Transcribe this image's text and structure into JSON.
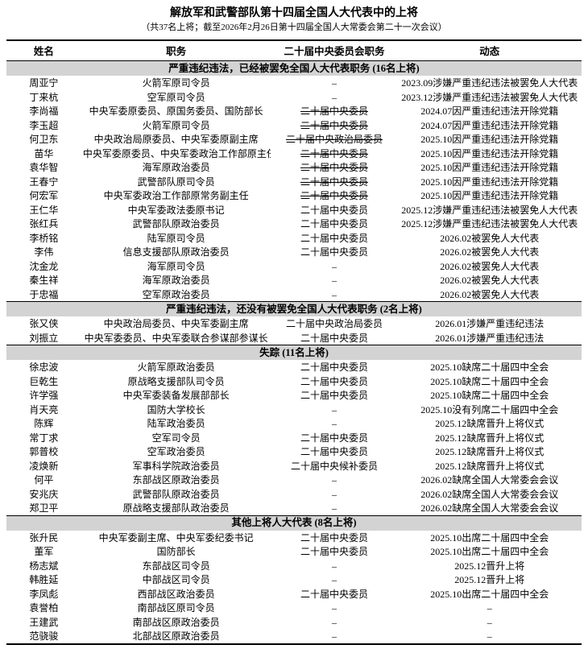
{
  "title": "解放军和武警部队第十四届全国人大代表中的上将",
  "subtitle": "（共37名上将；截至2026年2月26日第十四届全国人大常委会第二十一次会议）",
  "columns": {
    "name": "姓名",
    "position": "职务",
    "committee": "二十届中央委员会职务",
    "status": "动态"
  },
  "sections": [
    {
      "header": "严重违纪违法，已经被罢免全国人大代表职务 (16名上将)",
      "rows": [
        {
          "name": "周亚宁",
          "position": "火箭军原司令员",
          "committee": "–",
          "committee_struck": false,
          "status": "2023.09涉嫌严重违纪违法被罢免人大代表"
        },
        {
          "name": "丁来杭",
          "position": "空军原司令员",
          "committee": "–",
          "committee_struck": false,
          "status": "2023.12涉嫌严重违纪违法被罢免人大代表"
        },
        {
          "name": "李尚福",
          "position": "中央军委原委员、原国务委员、国防部长",
          "committee": "二十届中央委员",
          "committee_struck": true,
          "status": "2024.07因严重违纪违法开除党籍"
        },
        {
          "name": "李玉超",
          "position": "火箭军原司令员",
          "committee": "二十届中央委员",
          "committee_struck": true,
          "status": "2024.07因严重违纪违法开除党籍"
        },
        {
          "name": "何卫东",
          "position": "中央政治局原委员、中央军委原副主席",
          "committee": "二十届中央政治局委员",
          "committee_struck": true,
          "status": "2025.10因严重违纪违法开除党籍"
        },
        {
          "name": "苗华",
          "position": "中央军委原委员、中央军委政治工作部原主任",
          "committee": "二十届中央委员",
          "committee_struck": true,
          "status": "2025.10因严重违纪违法开除党籍"
        },
        {
          "name": "袁华智",
          "position": "海军原政治委员",
          "committee": "二十届中央委员",
          "committee_struck": true,
          "status": "2025.10因严重违纪违法开除党籍"
        },
        {
          "name": "王春宁",
          "position": "武警部队原司令员",
          "committee": "二十届中央委员",
          "committee_struck": true,
          "status": "2025.10因严重违纪违法开除党籍"
        },
        {
          "name": "何宏军",
          "position": "中央军委政治工作部原常务副主任",
          "committee": "二十届中央委员",
          "committee_struck": true,
          "status": "2025.10因严重违纪违法开除党籍"
        },
        {
          "name": "王仁华",
          "position": "中央军委政法委原书记",
          "committee": "二十届中央委员",
          "committee_struck": false,
          "status": "2025.12涉嫌严重违纪违法被罢免人大代表"
        },
        {
          "name": "张红兵",
          "position": "武警部队原政治委员",
          "committee": "二十届中央委员",
          "committee_struck": false,
          "status": "2025.12涉嫌严重违纪违法被罢免人大代表"
        },
        {
          "name": "李桥铭",
          "position": "陆军原司令员",
          "committee": "二十届中央委员",
          "committee_struck": false,
          "status": "2026.02被罢免人大代表"
        },
        {
          "name": "李伟",
          "position": "信息支援部队原政治委员",
          "committee": "二十届中央委员",
          "committee_struck": false,
          "status": "2026.02被罢免人大代表"
        },
        {
          "name": "沈金龙",
          "position": "海军原司令员",
          "committee": "–",
          "committee_struck": false,
          "status": "2026.02被罢免人大代表"
        },
        {
          "name": "秦生祥",
          "position": "海军原政治委员",
          "committee": "–",
          "committee_struck": false,
          "status": "2026.02被罢免人大代表"
        },
        {
          "name": "于忠福",
          "position": "空军原政治委员",
          "committee": "–",
          "committee_struck": false,
          "status": "2026.02被罢免人大代表"
        }
      ]
    },
    {
      "header": "严重违纪违法，还没有被罢免全国人大代表职务 (2名上将)",
      "rows": [
        {
          "name": "张又侠",
          "position": "中央政治局委员、中央军委副主席",
          "committee": "二十届中央政治局委员",
          "committee_struck": false,
          "status": "2026.01涉嫌严重违纪违法"
        },
        {
          "name": "刘振立",
          "position": "中央军委委员、中央军委联合参谋部参谋长",
          "committee": "二十届中央委员",
          "committee_struck": false,
          "status": "2026.01涉嫌严重违纪违法"
        }
      ]
    },
    {
      "header": "失踪 (11名上将)",
      "rows": [
        {
          "name": "徐忠波",
          "position": "火箭军原政治委员",
          "committee": "二十届中央委员",
          "committee_struck": false,
          "status": "2025.10缺席二十届四中全会"
        },
        {
          "name": "巨乾生",
          "position": "原战略支援部队司令员",
          "committee": "二十届中央委员",
          "committee_struck": false,
          "status": "2025.10缺席二十届四中全会"
        },
        {
          "name": "许学强",
          "position": "中央军委装备发展部部长",
          "committee": "二十届中央委员",
          "committee_struck": false,
          "status": "2025.10缺席二十届四中全会"
        },
        {
          "name": "肖天亮",
          "position": "国防大学校长",
          "committee": "–",
          "committee_struck": false,
          "status": "2025.10没有列席二十届四中全会"
        },
        {
          "name": "陈辉",
          "position": "陆军政治委员",
          "committee": "–",
          "committee_struck": false,
          "status": "2025.12缺席晋升上将仪式"
        },
        {
          "name": "常丁求",
          "position": "空军司令员",
          "committee": "二十届中央委员",
          "committee_struck": false,
          "status": "2025.12缺席晋升上将仪式"
        },
        {
          "name": "郭普校",
          "position": "空军政治委员",
          "committee": "二十届中央委员",
          "committee_struck": false,
          "status": "2025.12缺席晋升上将仪式"
        },
        {
          "name": "凌焕新",
          "position": "军事科学院政治委员",
          "committee": "二十届中央候补委员",
          "committee_struck": false,
          "status": "2025.12缺席晋升上将仪式"
        },
        {
          "name": "何平",
          "position": "东部战区原政治委员",
          "committee": "–",
          "committee_struck": false,
          "status": "2026.02缺席全国人大常委会会议"
        },
        {
          "name": "安兆庆",
          "position": "武警部队原政治委员",
          "committee": "–",
          "committee_struck": false,
          "status": "2026.02缺席全国人大常委会会议"
        },
        {
          "name": "郑卫平",
          "position": "原战略支援部队政治委员",
          "committee": "–",
          "committee_struck": false,
          "status": "2026.02缺席全国人大常委会会议"
        }
      ]
    },
    {
      "header": "其他上将人大代表 (8名上将)",
      "rows": [
        {
          "name": "张升民",
          "position": "中央军委副主席、中央军委纪委书记",
          "committee": "二十届中央委员",
          "committee_struck": false,
          "status": "2025.10出席二十届四中全会"
        },
        {
          "name": "董军",
          "position": "国防部长",
          "committee": "二十届中央委员",
          "committee_struck": false,
          "status": "2025.10出席二十届四中全会"
        },
        {
          "name": "杨志斌",
          "position": "东部战区司令员",
          "committee": "–",
          "committee_struck": false,
          "status": "2025.12晋升上将"
        },
        {
          "name": "韩胜延",
          "position": "中部战区司令员",
          "committee": "–",
          "committee_struck": false,
          "status": "2025.12晋升上将"
        },
        {
          "name": "李凤彪",
          "position": "西部战区政治委员",
          "committee": "二十届中央委员",
          "committee_struck": false,
          "status": "2025.10出席二十届四中全会"
        },
        {
          "name": "袁誉柏",
          "position": "南部战区原司令员",
          "committee": "–",
          "committee_struck": false,
          "status": "–"
        },
        {
          "name": "王建武",
          "position": "南部战区原政治委员",
          "committee": "–",
          "committee_struck": false,
          "status": "–"
        },
        {
          "name": "范骁骏",
          "position": "北部战区原政治委员",
          "committee": "–",
          "committee_struck": false,
          "status": "–"
        }
      ]
    }
  ]
}
